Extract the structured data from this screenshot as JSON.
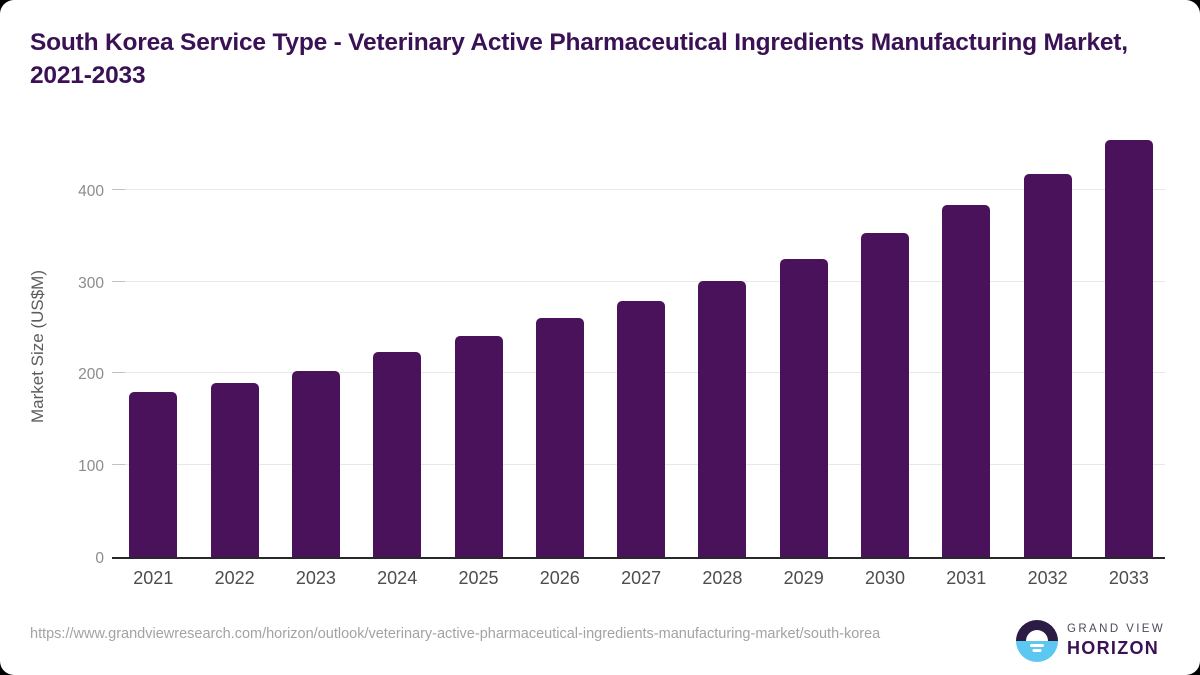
{
  "title": "South Korea Service Type - Veterinary Active Pharmaceutical Ingredients Manufacturing Market, 2021-2033",
  "chart_data": {
    "type": "bar",
    "categories": [
      "2021",
      "2022",
      "2023",
      "2024",
      "2025",
      "2026",
      "2027",
      "2028",
      "2029",
      "2030",
      "2031",
      "2032",
      "2033"
    ],
    "values": [
      180,
      190,
      203,
      223,
      241,
      260,
      279,
      301,
      325,
      353,
      383,
      417,
      454
    ],
    "title": "South Korea Service Type - Veterinary Active Pharmaceutical Ingredients Manufacturing Market, 2021-2033",
    "xlabel": "",
    "ylabel": "Market Size (US$M)",
    "ylim": [
      0,
      463
    ],
    "yticks": [
      0,
      100,
      200,
      300,
      400
    ],
    "grid": true,
    "legend": "none",
    "bar_color": "#4a125a"
  },
  "footer": {
    "source_url": "https://www.grandviewresearch.com/horizon/outlook/veterinary-active-pharmaceutical-ingredients-manufacturing-market/south-korea",
    "logo": {
      "line1": "GRAND VIEW",
      "line2": "HORIZON"
    }
  },
  "colors": {
    "bar": "#4a125a",
    "title_text": "#3a1154",
    "axis_line": "#28282c",
    "gridline": "#e8e8e8",
    "logo_dark": "#2b1b45",
    "logo_blue": "#5cc8f1"
  }
}
